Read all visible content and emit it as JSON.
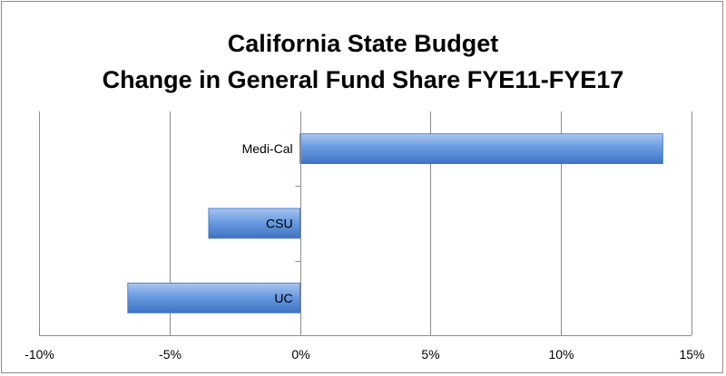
{
  "chart_data": {
    "type": "bar",
    "orientation": "horizontal",
    "title_lines": [
      "California State Budget",
      "Change in General Fund Share FYE11-FYE17"
    ],
    "categories": [
      "Medi-Cal",
      "CSU",
      "UC"
    ],
    "values": [
      13.9,
      -3.5,
      -6.6
    ],
    "xlim": [
      -10,
      15
    ],
    "xticks": [
      -10,
      -5,
      0,
      5,
      10,
      15
    ],
    "xtick_labels": [
      "-10%",
      "-5%",
      "0%",
      "5%",
      "10%",
      "15%"
    ],
    "xlabel": "",
    "ylabel": "",
    "grid": "vertical",
    "bar_color": "#5b8fd8"
  }
}
